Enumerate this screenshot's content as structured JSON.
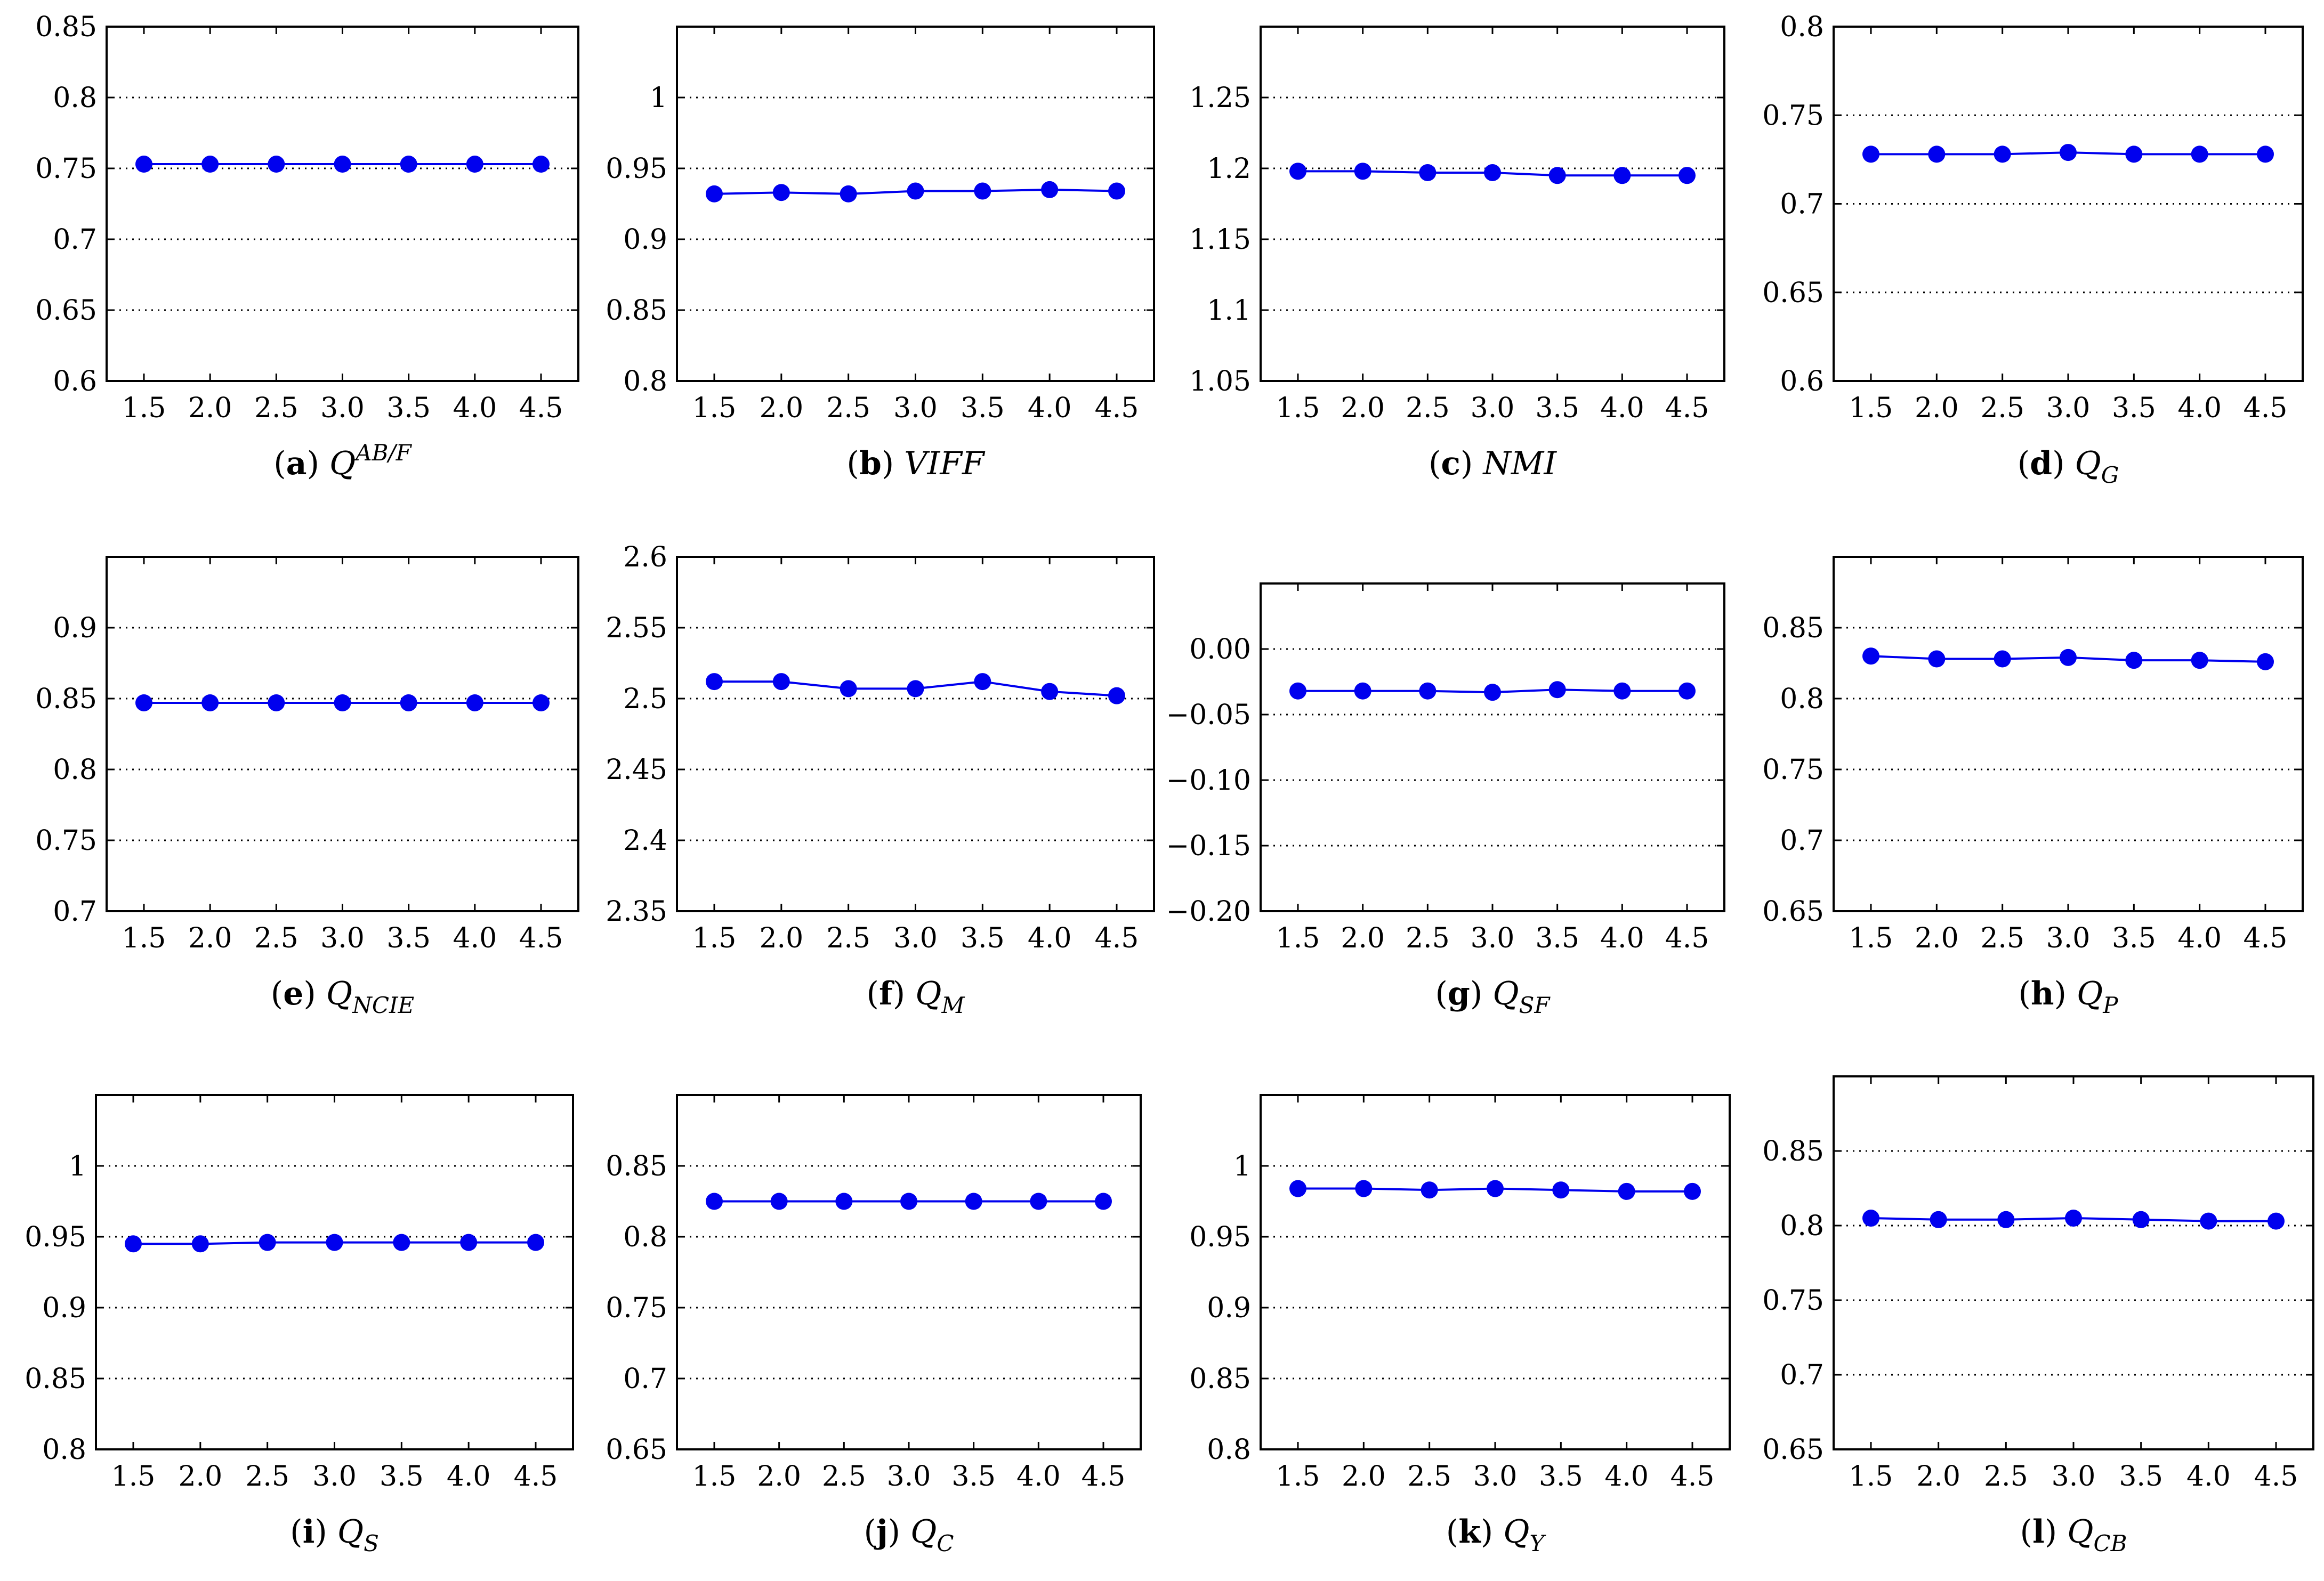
{
  "figure": {
    "x_ticks": [
      "1.5",
      "2.0",
      "2.5",
      "3.0",
      "3.5",
      "4.0",
      "4.5"
    ],
    "series_color": "#0000ee"
  },
  "chart_data": [
    {
      "type": "line",
      "id": "a",
      "caption_letter": "a",
      "caption_main": "Q",
      "caption_sup": "AB/F",
      "caption_sub": "",
      "x": [
        1.5,
        2.0,
        2.5,
        3.0,
        3.5,
        4.0,
        4.5
      ],
      "ylim": [
        0.6,
        0.85
      ],
      "yticks": [
        0.6,
        0.65,
        0.7,
        0.75,
        0.8,
        0.85
      ],
      "ytick_labels": [
        "0.6",
        "0.65",
        "0.7",
        "0.75",
        "0.8",
        "0.85"
      ],
      "values": [
        0.753,
        0.753,
        0.753,
        0.753,
        0.753,
        0.753,
        0.753
      ]
    },
    {
      "type": "line",
      "id": "b",
      "caption_letter": "b",
      "caption_main": "VIFF",
      "caption_sup": "",
      "caption_sub": "",
      "x": [
        1.5,
        2.0,
        2.5,
        3.0,
        3.5,
        4.0,
        4.5
      ],
      "ylim": [
        0.8,
        1.05
      ],
      "yticks": [
        0.8,
        0.85,
        0.9,
        0.95,
        1.0
      ],
      "ytick_labels": [
        "0.8",
        "0.85",
        "0.9",
        "0.95",
        "1"
      ],
      "values": [
        0.932,
        0.933,
        0.932,
        0.934,
        0.934,
        0.935,
        0.934
      ]
    },
    {
      "type": "line",
      "id": "c",
      "caption_letter": "c",
      "caption_main": "NMI",
      "caption_sup": "",
      "caption_sub": "",
      "x": [
        1.5,
        2.0,
        2.5,
        3.0,
        3.5,
        4.0,
        4.5
      ],
      "ylim": [
        1.05,
        1.3
      ],
      "yticks": [
        1.05,
        1.1,
        1.15,
        1.2,
        1.25
      ],
      "ytick_labels": [
        "1.05",
        "1.1",
        "1.15",
        "1.2",
        "1.25"
      ],
      "values": [
        1.198,
        1.198,
        1.197,
        1.197,
        1.195,
        1.195,
        1.195
      ]
    },
    {
      "type": "line",
      "id": "d",
      "caption_letter": "d",
      "caption_main": "Q",
      "caption_sup": "",
      "caption_sub": "G",
      "x": [
        1.5,
        2.0,
        2.5,
        3.0,
        3.5,
        4.0,
        4.5
      ],
      "ylim": [
        0.6,
        0.8
      ],
      "yticks": [
        0.6,
        0.65,
        0.7,
        0.75,
        0.8
      ],
      "ytick_labels": [
        "0.6",
        "0.65",
        "0.7",
        "0.75",
        "0.8"
      ],
      "values": [
        0.728,
        0.728,
        0.728,
        0.729,
        0.728,
        0.728,
        0.728
      ]
    },
    {
      "type": "line",
      "id": "e",
      "caption_letter": "e",
      "caption_main": "Q",
      "caption_sup": "",
      "caption_sub": "NCIE",
      "x": [
        1.5,
        2.0,
        2.5,
        3.0,
        3.5,
        4.0,
        4.5
      ],
      "ylim": [
        0.7,
        0.95
      ],
      "yticks": [
        0.7,
        0.75,
        0.8,
        0.85,
        0.9
      ],
      "ytick_labels": [
        "0.7",
        "0.75",
        "0.8",
        "0.85",
        "0.9"
      ],
      "values": [
        0.847,
        0.847,
        0.847,
        0.847,
        0.847,
        0.847,
        0.847
      ]
    },
    {
      "type": "line",
      "id": "f",
      "caption_letter": "f",
      "caption_main": "Q",
      "caption_sup": "",
      "caption_sub": "M",
      "x": [
        1.5,
        2.0,
        2.5,
        3.0,
        3.5,
        4.0,
        4.5
      ],
      "ylim": [
        2.35,
        2.6
      ],
      "yticks": [
        2.35,
        2.4,
        2.45,
        2.5,
        2.55,
        2.6
      ],
      "ytick_labels": [
        "2.35",
        "2.4",
        "2.45",
        "2.5",
        "2.55",
        "2.6"
      ],
      "values": [
        2.512,
        2.512,
        2.507,
        2.507,
        2.512,
        2.505,
        2.502
      ]
    },
    {
      "type": "line",
      "id": "g",
      "caption_letter": "g",
      "caption_main": "Q",
      "caption_sup": "",
      "caption_sub": "SF",
      "x": [
        1.5,
        2.0,
        2.5,
        3.0,
        3.5,
        4.0,
        4.5
      ],
      "ylim": [
        -0.2,
        0.05
      ],
      "yticks": [
        -0.2,
        -0.15,
        -0.1,
        -0.05,
        0.0
      ],
      "ytick_labels": [
        "−0.20",
        "−0.15",
        "−0.10",
        "−0.05",
        "0.00"
      ],
      "values": [
        -0.032,
        -0.032,
        -0.032,
        -0.033,
        -0.031,
        -0.032,
        -0.032
      ]
    },
    {
      "type": "line",
      "id": "h",
      "caption_letter": "h",
      "caption_main": "Q",
      "caption_sup": "",
      "caption_sub": "P",
      "x": [
        1.5,
        2.0,
        2.5,
        3.0,
        3.5,
        4.0,
        4.5
      ],
      "ylim": [
        0.65,
        0.9
      ],
      "yticks": [
        0.65,
        0.7,
        0.75,
        0.8,
        0.85
      ],
      "ytick_labels": [
        "0.65",
        "0.7",
        "0.75",
        "0.8",
        "0.85"
      ],
      "values": [
        0.83,
        0.828,
        0.828,
        0.829,
        0.827,
        0.827,
        0.826
      ]
    },
    {
      "type": "line",
      "id": "i",
      "caption_letter": "i",
      "caption_main": "Q",
      "caption_sup": "",
      "caption_sub": "S",
      "x": [
        1.5,
        2.0,
        2.5,
        3.0,
        3.5,
        4.0,
        4.5
      ],
      "ylim": [
        0.8,
        1.05
      ],
      "yticks": [
        0.8,
        0.85,
        0.9,
        0.95,
        1.0
      ],
      "ytick_labels": [
        "0.8",
        "0.85",
        "0.9",
        "0.95",
        "1"
      ],
      "values": [
        0.945,
        0.945,
        0.946,
        0.946,
        0.946,
        0.946,
        0.946
      ]
    },
    {
      "type": "line",
      "id": "j",
      "caption_letter": "j",
      "caption_main": "Q",
      "caption_sup": "",
      "caption_sub": "C",
      "x": [
        1.5,
        2.0,
        2.5,
        3.0,
        3.5,
        4.0,
        4.5
      ],
      "ylim": [
        0.65,
        0.9
      ],
      "yticks": [
        0.65,
        0.7,
        0.75,
        0.8,
        0.85
      ],
      "ytick_labels": [
        "0.65",
        "0.7",
        "0.75",
        "0.8",
        "0.85"
      ],
      "values": [
        0.825,
        0.825,
        0.825,
        0.825,
        0.825,
        0.825,
        0.825
      ]
    },
    {
      "type": "line",
      "id": "k",
      "caption_letter": "k",
      "caption_main": "Q",
      "caption_sup": "",
      "caption_sub": "Y",
      "x": [
        1.5,
        2.0,
        2.5,
        3.0,
        3.5,
        4.0,
        4.5
      ],
      "ylim": [
        0.8,
        1.05
      ],
      "yticks": [
        0.8,
        0.85,
        0.9,
        0.95,
        1.0
      ],
      "ytick_labels": [
        "0.8",
        "0.85",
        "0.9",
        "0.95",
        "1"
      ],
      "values": [
        0.984,
        0.984,
        0.983,
        0.984,
        0.983,
        0.982,
        0.982
      ]
    },
    {
      "type": "line",
      "id": "l",
      "caption_letter": "l",
      "caption_main": "Q",
      "caption_sup": "",
      "caption_sub": "CB",
      "x": [
        1.5,
        2.0,
        2.5,
        3.0,
        3.5,
        4.0,
        4.5
      ],
      "ylim": [
        0.65,
        0.9
      ],
      "yticks": [
        0.65,
        0.7,
        0.75,
        0.8,
        0.85
      ],
      "ytick_labels": [
        "0.65",
        "0.7",
        "0.75",
        "0.8",
        "0.85"
      ],
      "values": [
        0.805,
        0.804,
        0.804,
        0.805,
        0.804,
        0.803,
        0.803
      ]
    }
  ]
}
